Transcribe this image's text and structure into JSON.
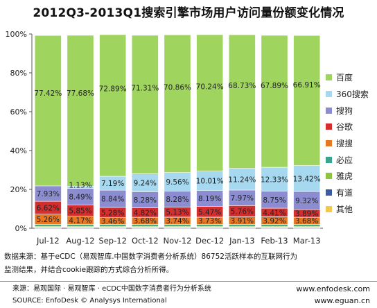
{
  "title": "2012Q3-2013Q1搜索引擎市场用户访问量份额变化情况",
  "chart_data": {
    "type": "bar",
    "stacked": true,
    "categories": [
      "Jul-12",
      "Aug-12",
      "Sep-12",
      "Oct-12",
      "Nov-12",
      "Dec-12",
      "Jan-13",
      "Feb-13",
      "Mar-13"
    ],
    "ylim": [
      0,
      100
    ],
    "yticks": [
      "0%",
      "20%",
      "40%",
      "60%",
      "80%",
      "100%"
    ],
    "legend_placement": "right",
    "grid": false,
    "series": [
      {
        "name": "其他",
        "color": "#f2c94c",
        "values": [
          0.2,
          0.2,
          0.2,
          0.2,
          0.2,
          0.2,
          0.2,
          0.2,
          0.2
        ]
      },
      {
        "name": "有道",
        "color": "#3b5aa0",
        "values": [
          0.3,
          0.3,
          0.3,
          0.3,
          0.3,
          0.3,
          0.3,
          0.3,
          0.3
        ]
      },
      {
        "name": "雅虎",
        "color": "#8cc63f",
        "values": [
          0.5,
          0.5,
          0.5,
          0.5,
          0.5,
          0.5,
          0.5,
          0.5,
          0.5
        ]
      },
      {
        "name": "必应",
        "color": "#3aa58c",
        "values": [
          1.0,
          1.0,
          1.0,
          1.0,
          1.0,
          1.0,
          1.0,
          1.0,
          1.0
        ]
      },
      {
        "name": "搜搜",
        "color": "#e87722",
        "values": [
          5.26,
          4.17,
          3.46,
          3.68,
          3.74,
          3.73,
          3.91,
          3.92,
          3.68
        ]
      },
      {
        "name": "谷歌",
        "color": "#d42e2e",
        "values": [
          6.62,
          5.85,
          5.28,
          4.82,
          5.13,
          5.47,
          5.76,
          4.41,
          3.89
        ]
      },
      {
        "name": "搜狗",
        "color": "#8c8dd0",
        "values": [
          7.93,
          8.49,
          8.84,
          8.28,
          8.28,
          8.19,
          7.97,
          8.75,
          9.32
        ]
      },
      {
        "name": "360搜索",
        "color": "#a6d8f0",
        "values": [
          0,
          1.13,
          7.19,
          9.24,
          9.56,
          10.01,
          11.24,
          12.33,
          13.42
        ]
      },
      {
        "name": "百度",
        "color": "#9fd45e",
        "values": [
          77.42,
          77.68,
          72.89,
          71.31,
          70.86,
          70.24,
          68.73,
          67.89,
          66.91
        ]
      }
    ],
    "data_labels": {
      "百度": [
        "77.42%",
        "77.68%",
        "72.89%",
        "71.31%",
        "70.86%",
        "70.24%",
        "68.73%",
        "67.89%",
        "66.91%"
      ],
      "360搜索": [
        "",
        "1.13%",
        "7.19%",
        "9.24%",
        "9.56%",
        "10.01%",
        "11.24%",
        "12.33%",
        "13.42%"
      ],
      "搜狗": [
        "7.93%",
        "8.49%",
        "8.84%",
        "8.28%",
        "8.28%",
        "8.19%",
        "7.97%",
        "8.75%",
        "9.32%"
      ],
      "谷歌": [
        "6.62%",
        "5.85%",
        "5.28%",
        "4.82%",
        "5.13%",
        "5.47%",
        "5.76%",
        "4.41%",
        "3.89%"
      ],
      "搜搜": [
        "5.26%",
        "4.17%",
        "3.46%",
        "3.68%",
        "3.74%",
        "3.73%",
        "3.91%",
        "3.92%",
        "3.68%"
      ]
    }
  },
  "legend_order": [
    "百度",
    "360搜索",
    "搜狗",
    "谷歌",
    "搜搜",
    "必应",
    "雅虎",
    "有道",
    "其他"
  ],
  "source_text_line1": "数据来源：基于eCDC（易观智库.中国数字消费者分析系统）86752活跃样本的互联网行为",
  "source_text_line2": "监测结果，并结合cookie跟踪的方式综合分析所得。",
  "footer": {
    "left_line1": "来源：易观国际 · 易观智库 · eCDC中国数字消费者行为分析系统",
    "left_line2": "SOURCE: EnfoDesk © Analysys International",
    "right_line1": "www.enfodesk.com",
    "right_line2": "www.eguan.cn"
  }
}
